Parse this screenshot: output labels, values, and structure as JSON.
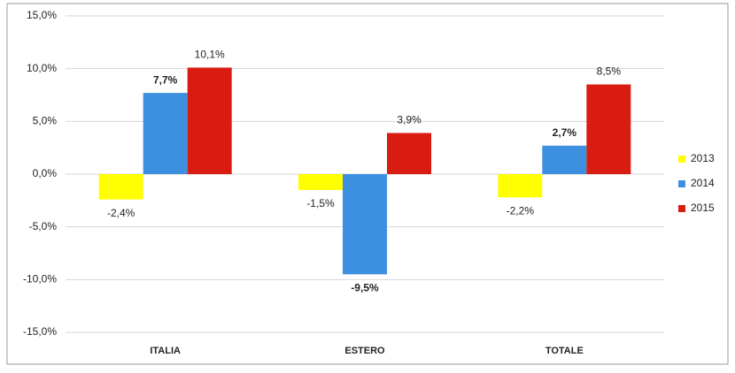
{
  "chart_data": {
    "type": "bar",
    "categories": [
      "ITALIA",
      "ESTERO",
      "TOTALE"
    ],
    "series": [
      {
        "name": "2013",
        "color": "#ffff00",
        "values": [
          -2.4,
          -1.5,
          -2.2
        ],
        "value_labels": [
          "-2,4%",
          "-1,5%",
          "-2,2%"
        ]
      },
      {
        "name": "2014",
        "color": "#3d8fe0",
        "values": [
          7.7,
          -9.5,
          2.7
        ],
        "value_labels": [
          "7,7%",
          "-9,5%",
          "2,7%"
        ],
        "label_bold": true
      },
      {
        "name": "2015",
        "color": "#d81c12",
        "values": [
          10.1,
          3.9,
          8.5
        ],
        "value_labels": [
          "10,1%",
          "3,9%",
          "8,5%"
        ]
      }
    ],
    "ylim": [
      -15,
      15
    ],
    "yticks": [
      {
        "value": -15,
        "label": "-15,0%"
      },
      {
        "value": -10,
        "label": "-10,0%"
      },
      {
        "value": -5,
        "label": "-5,0%"
      },
      {
        "value": 0,
        "label": "0,0%"
      },
      {
        "value": 5,
        "label": "5,0%"
      },
      {
        "value": 10,
        "label": "10,0%"
      },
      {
        "value": 15,
        "label": "15,0%"
      }
    ],
    "grid": true,
    "legend": "right"
  }
}
